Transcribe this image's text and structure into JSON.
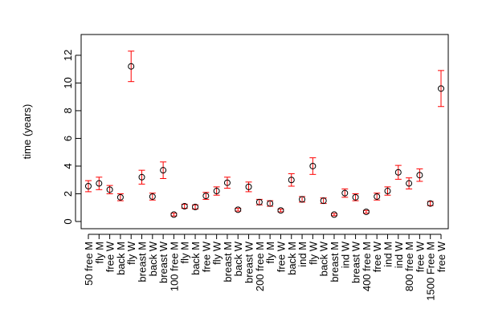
{
  "chart_data": {
    "type": "errorbar",
    "y_label": "time (years)",
    "categories": [
      "50 free M",
      "fly M",
      "free W",
      "back M",
      "fly W",
      "breast M",
      "back W",
      "breast W",
      "100 free M",
      "fly M",
      "back M",
      "free W",
      "fly W",
      "breast M",
      "back W",
      "breast W",
      "200 free M",
      "fly M",
      "free W",
      "back M",
      "ind M",
      "fly W",
      "back W",
      "breast M",
      "ind W",
      "breast W",
      "400 free M",
      "free W",
      "ind M",
      "ind W",
      "800 free M",
      "free W",
      "1500 Free M",
      "free W"
    ],
    "values": [
      2.55,
      2.75,
      2.3,
      1.75,
      11.2,
      3.2,
      1.8,
      3.7,
      0.5,
      1.1,
      1.05,
      1.85,
      2.2,
      2.8,
      0.85,
      2.5,
      1.4,
      1.3,
      0.8,
      3.0,
      1.6,
      4.0,
      1.5,
      0.5,
      2.05,
      1.75,
      0.7,
      1.8,
      2.2,
      3.55,
      2.75,
      3.35,
      1.3,
      9.6
    ],
    "errors": [
      0.4,
      0.45,
      0.3,
      0.25,
      1.1,
      0.5,
      0.25,
      0.6,
      0.1,
      0.15,
      0.15,
      0.25,
      0.3,
      0.4,
      0.1,
      0.35,
      0.2,
      0.2,
      0.1,
      0.45,
      0.2,
      0.6,
      0.2,
      0.08,
      0.3,
      0.25,
      0.1,
      0.25,
      0.3,
      0.5,
      0.4,
      0.45,
      0.15,
      1.3
    ],
    "point_color": "#000000",
    "error_color": "#ff0000",
    "ylim": [
      -0.52,
      13.5
    ],
    "yticks": [
      0,
      2,
      4,
      6,
      8,
      10,
      12
    ]
  }
}
